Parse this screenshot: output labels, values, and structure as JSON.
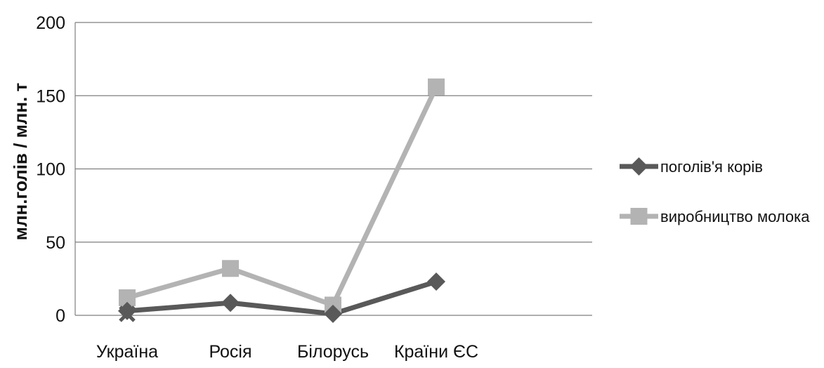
{
  "chart_data": {
    "type": "line",
    "title": "",
    "xlabel": "",
    "ylabel": "млн.голів / млн. т",
    "categories": [
      "Україна",
      "Росія",
      "Білорусь",
      "Країни ЄС"
    ],
    "ylim": [
      0,
      200
    ],
    "yticks": [
      0,
      50,
      100,
      150,
      200
    ],
    "grid": true,
    "legend_position": "right",
    "series": [
      {
        "name": "поголів'я корів",
        "values": [
          3,
          8.5,
          1,
          23
        ],
        "color": "#595959",
        "marker": "diamond"
      },
      {
        "name": "виробництво молока",
        "values": [
          12,
          32,
          7,
          156
        ],
        "color": "#b3b3b3",
        "marker": "square"
      }
    ],
    "annotations": [
      {
        "category": "Україна",
        "value": 1,
        "marker": "x-cross",
        "color": "#595959"
      }
    ]
  }
}
